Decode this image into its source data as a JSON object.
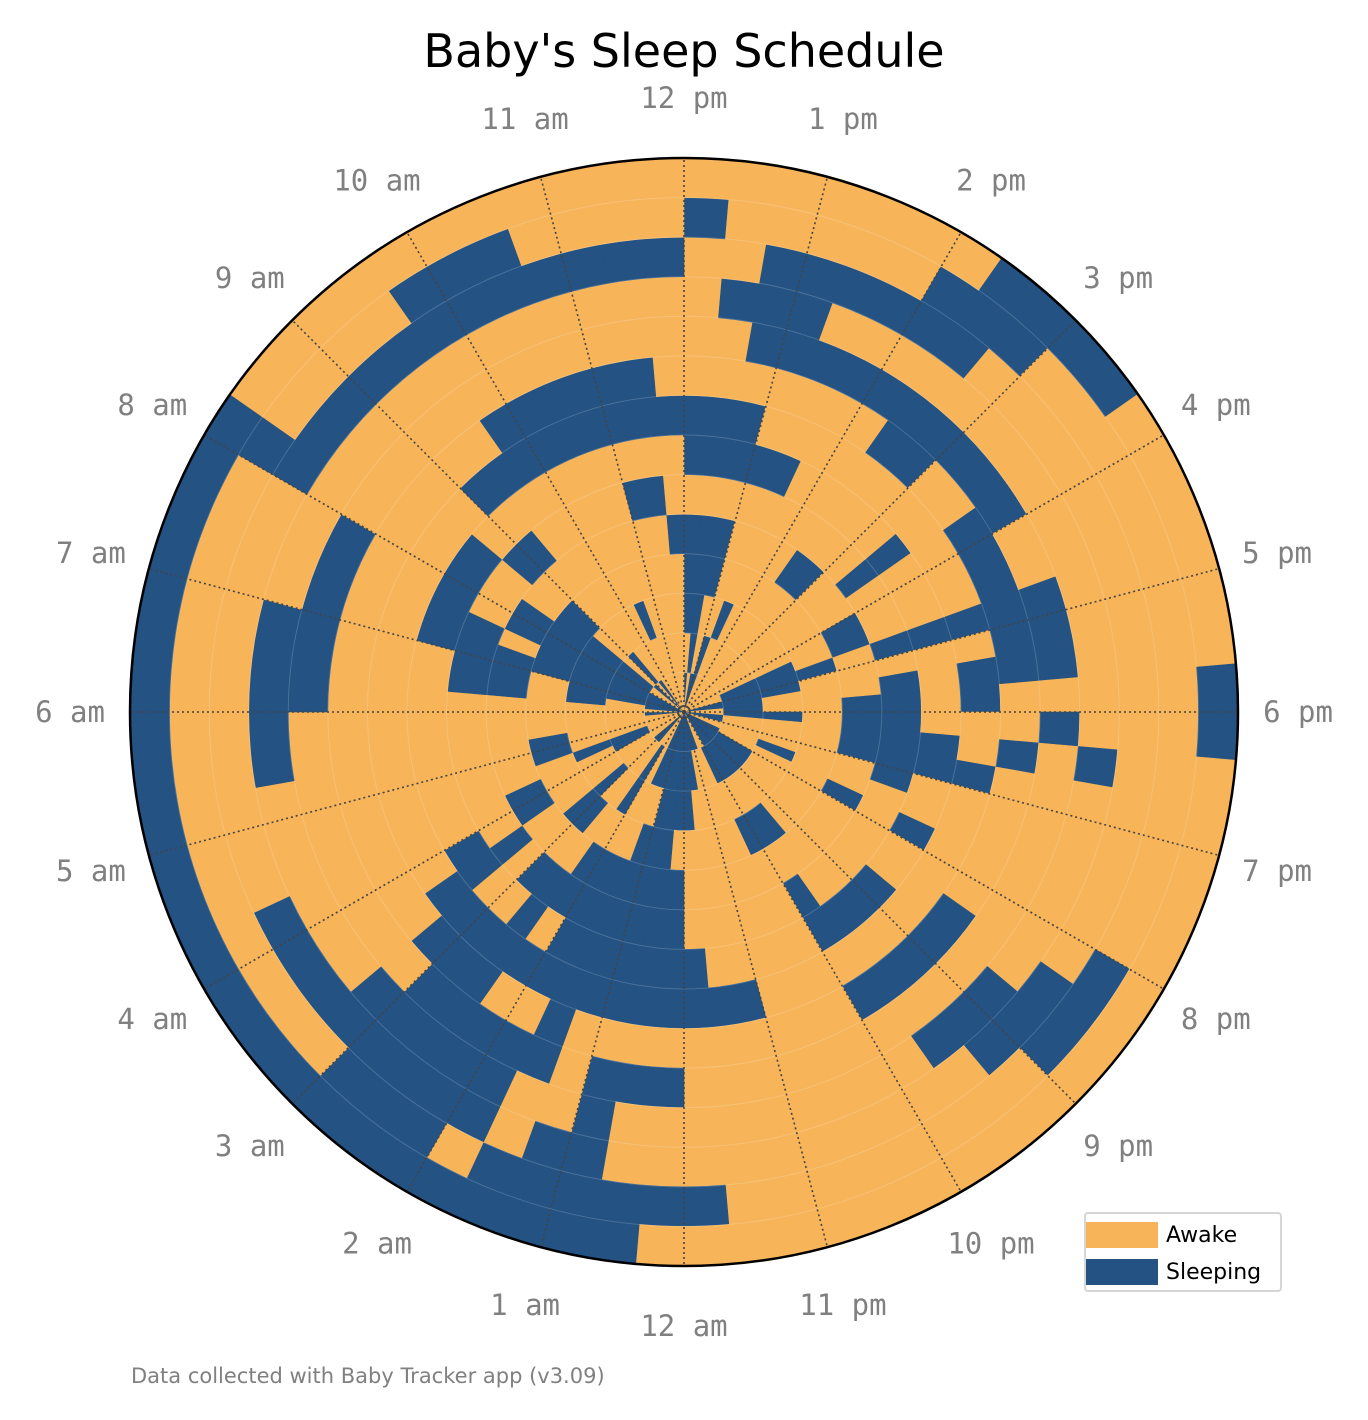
{
  "title": "Baby's Sleep Schedule",
  "footnote": "Data collected with Baby Tracker app (v3.09)",
  "colors": {
    "awake": "#f7b459",
    "sleeping": "#235283",
    "grid": "#444444",
    "labels": "#808080"
  },
  "legend": {
    "location": "lower-right",
    "items": [
      {
        "label": "Awake",
        "color": "#f7b459"
      },
      {
        "label": "Sleeping",
        "color": "#235283"
      }
    ]
  },
  "chart_data": {
    "type": "polar-bar",
    "title": "Baby's Sleep Schedule",
    "angular_axis": {
      "direction": "clockwise",
      "top": "12 pm",
      "start_hour": 12,
      "bin_minutes": 20,
      "tick_labels": [
        "12 pm",
        "1 pm",
        "2 pm",
        "3 pm",
        "4 pm",
        "5 pm",
        "6 pm",
        "7 pm",
        "8 pm",
        "9 pm",
        "10 pm",
        "11 pm",
        "12 am",
        "1 am",
        "2 am",
        "3 am",
        "4 am",
        "5 am",
        "6 am",
        "7 am",
        "8 am",
        "9 am",
        "10 am",
        "11 am"
      ]
    },
    "radial_axis": {
      "rings": 14,
      "unit": "day",
      "tick_labels_shown": false
    },
    "grid": true,
    "series": [
      {
        "name": "Awake",
        "value": 0
      },
      {
        "name": "Sleeping",
        "value": 1
      }
    ],
    "states": [
      "101100000000000110011001111111001111111110001100000001011111001010000000",
      "010100000000011111100000111111100011111110100000110000001111110100000000",
      "110010000000011100100010000000000001111000100100010000011111110000010000",
      "111000000000001000000000000011100000011100001100001100000111111000000000",
      "111000011000110001111001000000000000111111100001100000011101100000000001",
      "000000000010001011111100000001000000111111111010000000011110001100000110",
      "111110000010001000011001001111000001111111010011000000000111110000000000",
      "111000000000001011001000000000000111111111111110000000000000000111111111",
      "000000011001111110010000011111000000000010011100000000000000000001111110",
      "001111111111001110100000000000000000111011111000000000111111000000000000",
      "011100000000000000010000001110000000001001111100000011111000000000000000",
      "001111110000000000000000011100000000001101111111100000000000111111111111",
      "100000111000000000000000111000000001111110111000000000000000100001110000",
      "000000011110000001100000000000000000011111111111111111111111100000000000"
    ]
  }
}
